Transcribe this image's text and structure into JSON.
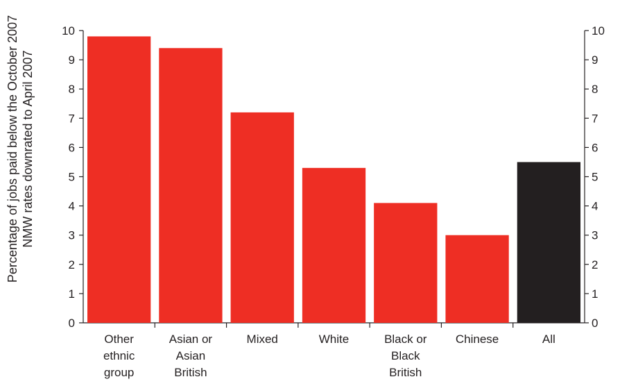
{
  "chart_data": {
    "type": "bar",
    "title": "",
    "xlabel": "",
    "ylabel": "Percentage of jobs paid below the October 2007 NMW rates downrated to April 2007",
    "ylabel_lines": [
      "Percentage of jobs paid below the October 2007",
      "NMW rates downrated to April 2007"
    ],
    "categories": [
      [
        "Other",
        "ethnic",
        "group"
      ],
      [
        "Asian or",
        "Asian",
        "British"
      ],
      [
        "Mixed"
      ],
      [
        "White"
      ],
      [
        "Black or",
        "Black",
        "British"
      ],
      [
        "Chinese"
      ],
      [
        "All"
      ]
    ],
    "values": [
      9.8,
      9.4,
      7.2,
      5.3,
      4.1,
      3.0,
      5.5
    ],
    "bar_colors": [
      "#ee2e24",
      "#ee2e24",
      "#ee2e24",
      "#ee2e24",
      "#ee2e24",
      "#ee2e24",
      "#231f20"
    ],
    "ylim": [
      0,
      10
    ],
    "yticks": [
      0,
      1,
      2,
      3,
      4,
      5,
      6,
      7,
      8,
      9,
      10
    ],
    "right_axis": true,
    "grid": false,
    "legend": "none"
  }
}
